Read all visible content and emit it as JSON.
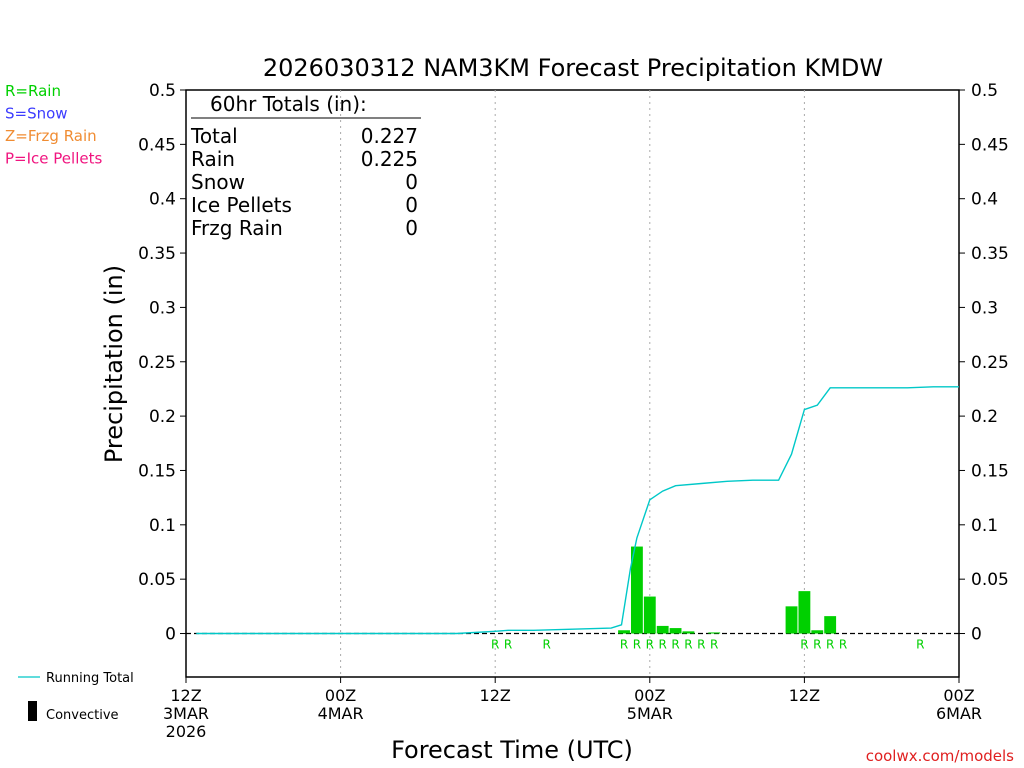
{
  "title": "2026030312 NAM3KM Forecast Precipitation KMDW",
  "ylabel": "Precipitation (in)",
  "xlabel": "Forecast Time (UTC)",
  "credit": "coolwx.com/models",
  "colors": {
    "rain": "#00d000",
    "running_total": "#00c8c8",
    "snow": "#3c3cff",
    "frzg_rain": "#f08c32",
    "ice_pellets": "#f0147f",
    "grid": "#aaaaaa"
  },
  "legend_types": [
    {
      "label": "R=Rain",
      "color": "#00d000"
    },
    {
      "label": "S=Snow",
      "color": "#3c3cff"
    },
    {
      "label": "Z=Frzg Rain",
      "color": "#f08c32"
    },
    {
      "label": "P=Ice Pellets",
      "color": "#f0147f"
    }
  ],
  "legend_bottom": {
    "running_total": "Running Total",
    "convective": "Convective"
  },
  "totals": {
    "header": "60hr Totals (in):",
    "rows": [
      {
        "label": "Total",
        "value": "0.227"
      },
      {
        "label": "Rain",
        "value": "0.225"
      },
      {
        "label": "Snow",
        "value": "0"
      },
      {
        "label": "Ice Pellets",
        "value": "0"
      },
      {
        "label": "Frzg Rain",
        "value": "0"
      }
    ]
  },
  "chart_data": {
    "type": "bar",
    "title": "2026030312 NAM3KM Forecast Precipitation KMDW",
    "xlabel": "Forecast Time (UTC)",
    "ylabel": "Precipitation (in)",
    "x_unit": "forecast hour",
    "ylim": [
      -0.04,
      0.5
    ],
    "xlim": [
      0,
      60
    ],
    "yticks": [
      "0",
      "0.05",
      "0.1",
      "0.15",
      "0.2",
      "0.25",
      "0.3",
      "0.35",
      "0.4",
      "0.45",
      "0.5"
    ],
    "ytick_values": [
      0,
      0.05,
      0.1,
      0.15,
      0.2,
      0.25,
      0.3,
      0.35,
      0.4,
      0.45,
      0.5
    ],
    "xticks": [
      {
        "hour": 0,
        "lines": [
          "12Z",
          "3MAR",
          "2026"
        ]
      },
      {
        "hour": 12,
        "lines": [
          "00Z",
          "4MAR"
        ]
      },
      {
        "hour": 24,
        "lines": [
          "12Z"
        ]
      },
      {
        "hour": 36,
        "lines": [
          "00Z",
          "5MAR"
        ]
      },
      {
        "hour": 48,
        "lines": [
          "12Z"
        ]
      },
      {
        "hour": 60,
        "lines": [
          "00Z",
          "6MAR"
        ]
      }
    ],
    "grid_hours": [
      12,
      24,
      36,
      48
    ],
    "bars": [
      {
        "hour": 34,
        "value": 0.003,
        "type": "R"
      },
      {
        "hour": 35,
        "value": 0.08,
        "type": "R"
      },
      {
        "hour": 36,
        "value": 0.034,
        "type": "R"
      },
      {
        "hour": 37,
        "value": 0.007,
        "type": "R"
      },
      {
        "hour": 38,
        "value": 0.005,
        "type": "R"
      },
      {
        "hour": 39,
        "value": 0.002,
        "type": "R"
      },
      {
        "hour": 41,
        "value": 0.001,
        "type": "R"
      },
      {
        "hour": 47,
        "value": 0.025,
        "type": "R"
      },
      {
        "hour": 48,
        "value": 0.039,
        "type": "R"
      },
      {
        "hour": 49,
        "value": 0.003,
        "type": "R"
      },
      {
        "hour": 50,
        "value": 0.016,
        "type": "R"
      }
    ],
    "type_labels": [
      {
        "hour": 24,
        "type": "R"
      },
      {
        "hour": 25,
        "type": "R"
      },
      {
        "hour": 28,
        "type": "R"
      },
      {
        "hour": 34,
        "type": "R"
      },
      {
        "hour": 35,
        "type": "R"
      },
      {
        "hour": 36,
        "type": "R"
      },
      {
        "hour": 37,
        "type": "R"
      },
      {
        "hour": 38,
        "type": "R"
      },
      {
        "hour": 39,
        "type": "R"
      },
      {
        "hour": 40,
        "type": "R"
      },
      {
        "hour": 41,
        "type": "R"
      },
      {
        "hour": 48,
        "type": "R"
      },
      {
        "hour": 49,
        "type": "R"
      },
      {
        "hour": 50,
        "type": "R"
      },
      {
        "hour": 51,
        "type": "R"
      },
      {
        "hour": 57,
        "type": "R"
      }
    ],
    "running_total": {
      "name": "Running Total",
      "hours": [
        0.8,
        21,
        24,
        25,
        27,
        30,
        33,
        33.8,
        34.5,
        35,
        36,
        37,
        38,
        40,
        42,
        44,
        46,
        47,
        48,
        49,
        50,
        52,
        54,
        56,
        58,
        60
      ],
      "values": [
        0,
        0,
        0.002,
        0.003,
        0.003,
        0.004,
        0.005,
        0.008,
        0.06,
        0.088,
        0.123,
        0.131,
        0.136,
        0.138,
        0.14,
        0.141,
        0.141,
        0.165,
        0.206,
        0.21,
        0.226,
        0.226,
        0.226,
        0.226,
        0.227,
        0.227
      ]
    }
  }
}
